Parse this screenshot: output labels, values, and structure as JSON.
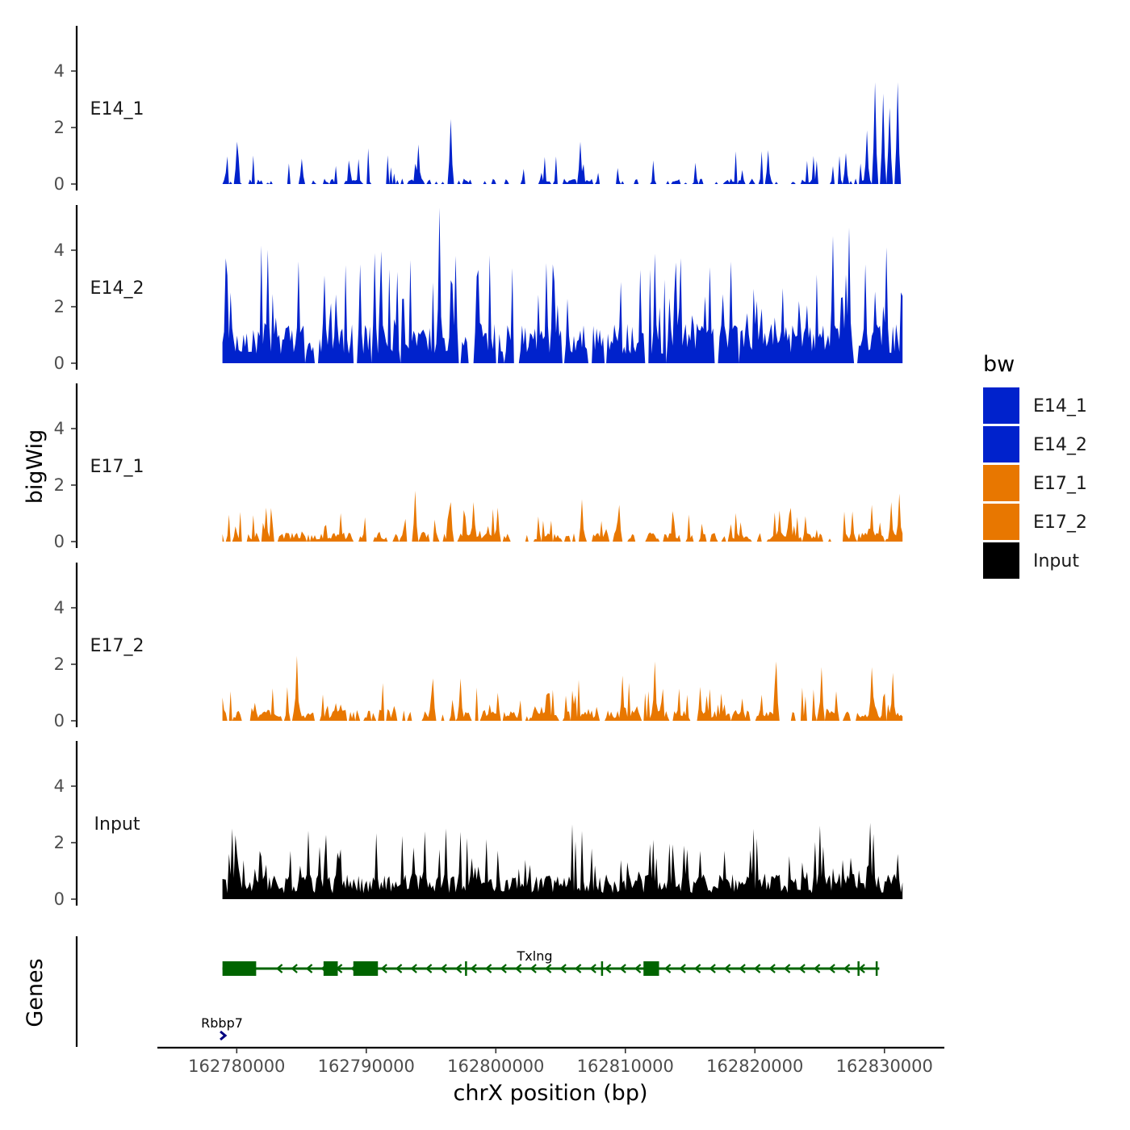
{
  "chart_data": {
    "type": "area",
    "title": "",
    "xlabel": "chrX position (bp)",
    "ylabel": "bigWig",
    "genes_panel_label": "Genes",
    "xlim": [
      162774000,
      162834500
    ],
    "ylim": [
      0,
      5.6
    ],
    "x_ticks": [
      162780000,
      162790000,
      162800000,
      162810000,
      162820000,
      162830000
    ],
    "x_tick_labels": [
      "162780000",
      "162790000",
      "162800000",
      "162810000",
      "162820000",
      "162830000"
    ],
    "y_ticks": [
      0,
      2,
      4
    ],
    "y_tick_labels": [
      "0",
      "2",
      "4"
    ],
    "data_range": [
      162778900,
      162831400
    ],
    "legend": {
      "title": "bw",
      "position": "right",
      "entries": [
        {
          "label": "E14_1",
          "color": "#0022CC"
        },
        {
          "label": "E14_2",
          "color": "#0022CC"
        },
        {
          "label": "E17_1",
          "color": "#E87700"
        },
        {
          "label": "E17_2",
          "color": "#E87700"
        },
        {
          "label": "Input",
          "color": "#000000"
        }
      ]
    },
    "series": [
      {
        "name": "E14_1",
        "color": "#0022CC",
        "seed": 11,
        "base": 0.15,
        "spike_height": 0.7,
        "zero_prob": 0.45,
        "peaks": [
          [
            162779100,
            0.4
          ],
          [
            162780000,
            1.5
          ],
          [
            162785000,
            0.9
          ],
          [
            162796500,
            2.3
          ],
          [
            162794000,
            1.4
          ],
          [
            162803500,
            0.4
          ],
          [
            162806500,
            1.5
          ],
          [
            162821000,
            1.2
          ],
          [
            162827000,
            1.1
          ],
          [
            162828700,
            1.9
          ],
          [
            162829300,
            3.6
          ],
          [
            162829900,
            3.2
          ],
          [
            162830400,
            2.7
          ],
          [
            162831000,
            3.6
          ]
        ]
      },
      {
        "name": "E14_2",
        "color": "#0022CC",
        "seed": 23,
        "base": 1.1,
        "spike_height": 1.8,
        "zero_prob": 0.04,
        "peaks": [
          [
            162779500,
            2.5
          ],
          [
            162784800,
            3.6
          ],
          [
            162789500,
            3.5
          ],
          [
            162790600,
            3.9
          ],
          [
            162795700,
            5.5
          ],
          [
            162796900,
            3.8
          ],
          [
            162804400,
            3.5
          ],
          [
            162813400,
            2.3
          ],
          [
            162816500,
            3.4
          ],
          [
            162818200,
            3.6
          ],
          [
            162826000,
            4.5
          ],
          [
            162827300,
            4.8
          ],
          [
            162828500,
            3.5
          ],
          [
            162830200,
            4.1
          ]
        ]
      },
      {
        "name": "E17_1",
        "color": "#E87700",
        "seed": 37,
        "base": 0.25,
        "spike_height": 0.6,
        "zero_prob": 0.15,
        "peaks": [
          [
            162782300,
            1.2
          ],
          [
            162793800,
            1.8
          ],
          [
            162796500,
            1.4
          ],
          [
            162798300,
            1.4
          ],
          [
            162800200,
            1.2
          ],
          [
            162806600,
            1.5
          ],
          [
            162809500,
            1.3
          ],
          [
            162821900,
            1.1
          ],
          [
            162829000,
            1.3
          ],
          [
            162830500,
            1.4
          ],
          [
            162831200,
            1.7
          ]
        ]
      },
      {
        "name": "E17_2",
        "color": "#E87700",
        "seed": 53,
        "base": 0.3,
        "spike_height": 0.7,
        "zero_prob": 0.12,
        "peaks": [
          [
            162784600,
            2.3
          ],
          [
            162795200,
            1.5
          ],
          [
            162797300,
            1.5
          ],
          [
            162809800,
            1.6
          ],
          [
            162812300,
            2.1
          ],
          [
            162815800,
            1.2
          ],
          [
            162821700,
            2.1
          ],
          [
            162825100,
            1.9
          ],
          [
            162829000,
            1.9
          ],
          [
            162830600,
            1.7
          ]
        ]
      },
      {
        "name": "Input",
        "color": "#000000",
        "seed": 71,
        "base": 0.7,
        "spike_height": 1.1,
        "zero_prob": 0.0,
        "peaks": [
          [
            162779700,
            2.5
          ],
          [
            162794500,
            2.4
          ],
          [
            162796100,
            2.5
          ],
          [
            162812200,
            2.1
          ],
          [
            162825000,
            2.6
          ],
          [
            162828900,
            2.7
          ],
          [
            162831000,
            1.6
          ]
        ]
      }
    ],
    "genes": [
      {
        "name": "Txlng",
        "color": "#006400",
        "strand": "-",
        "start": 162778900,
        "end": 162829600,
        "exons": [
          [
            162778900,
            162781500
          ],
          [
            162786700,
            162787800
          ],
          [
            162789000,
            162790900
          ],
          [
            162811400,
            162812600
          ]
        ],
        "ticks": [
          162797700,
          162808200,
          162828000,
          162829400
        ]
      },
      {
        "name": "Rbbp7",
        "color": "#000080",
        "strand": "+",
        "start": 162778800,
        "end": 162779300
      }
    ]
  }
}
